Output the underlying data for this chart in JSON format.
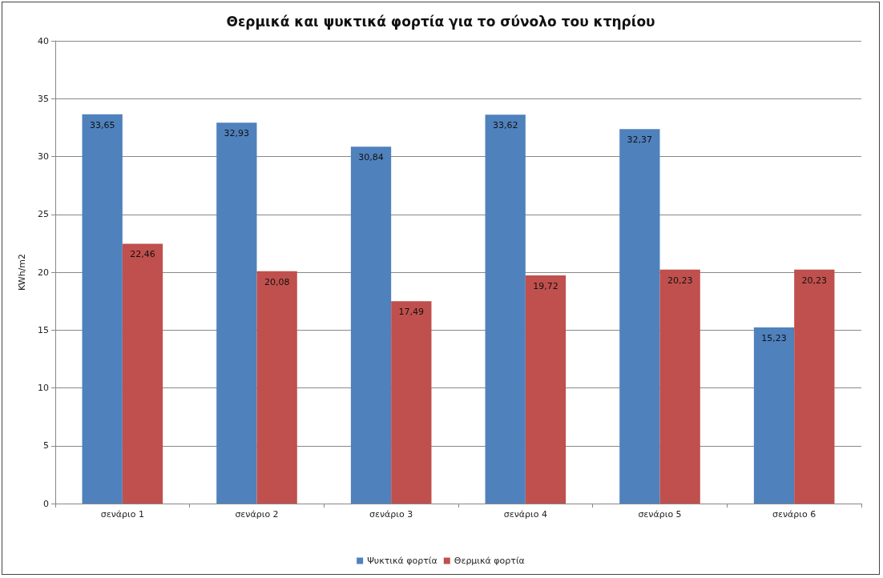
{
  "chart_data": {
    "type": "bar",
    "title": "Θερμικά και ψυκτικά φορτία για το σύνολο του κτηρίου",
    "ylabel": "KWh/m2",
    "categories": [
      "σενάριο 1",
      "σενάριο 2",
      "σενάριο 3",
      "σενάριο 4",
      "σενάριο 5",
      "σενάριο 6"
    ],
    "series": [
      {
        "name": "Ψυκτικά φορτία",
        "color": "#4f81bd",
        "values": [
          33.65,
          32.93,
          30.84,
          33.62,
          32.37,
          15.23
        ],
        "value_labels": [
          "33,65",
          "32,93",
          "30,84",
          "33,62",
          "32,37",
          "15,23"
        ]
      },
      {
        "name": "Θερμικά φορτία",
        "color": "#c0504d",
        "values": [
          22.46,
          20.08,
          17.49,
          19.72,
          20.23,
          20.23
        ],
        "value_labels": [
          "22,46",
          "20,08",
          "17,49",
          "19,72",
          "20,23",
          "20,23"
        ]
      }
    ],
    "ylim": [
      0,
      40
    ],
    "yticks": [
      0,
      5,
      10,
      15,
      20,
      25,
      30,
      35,
      40
    ],
    "grid": "y",
    "legend": "bottom"
  }
}
